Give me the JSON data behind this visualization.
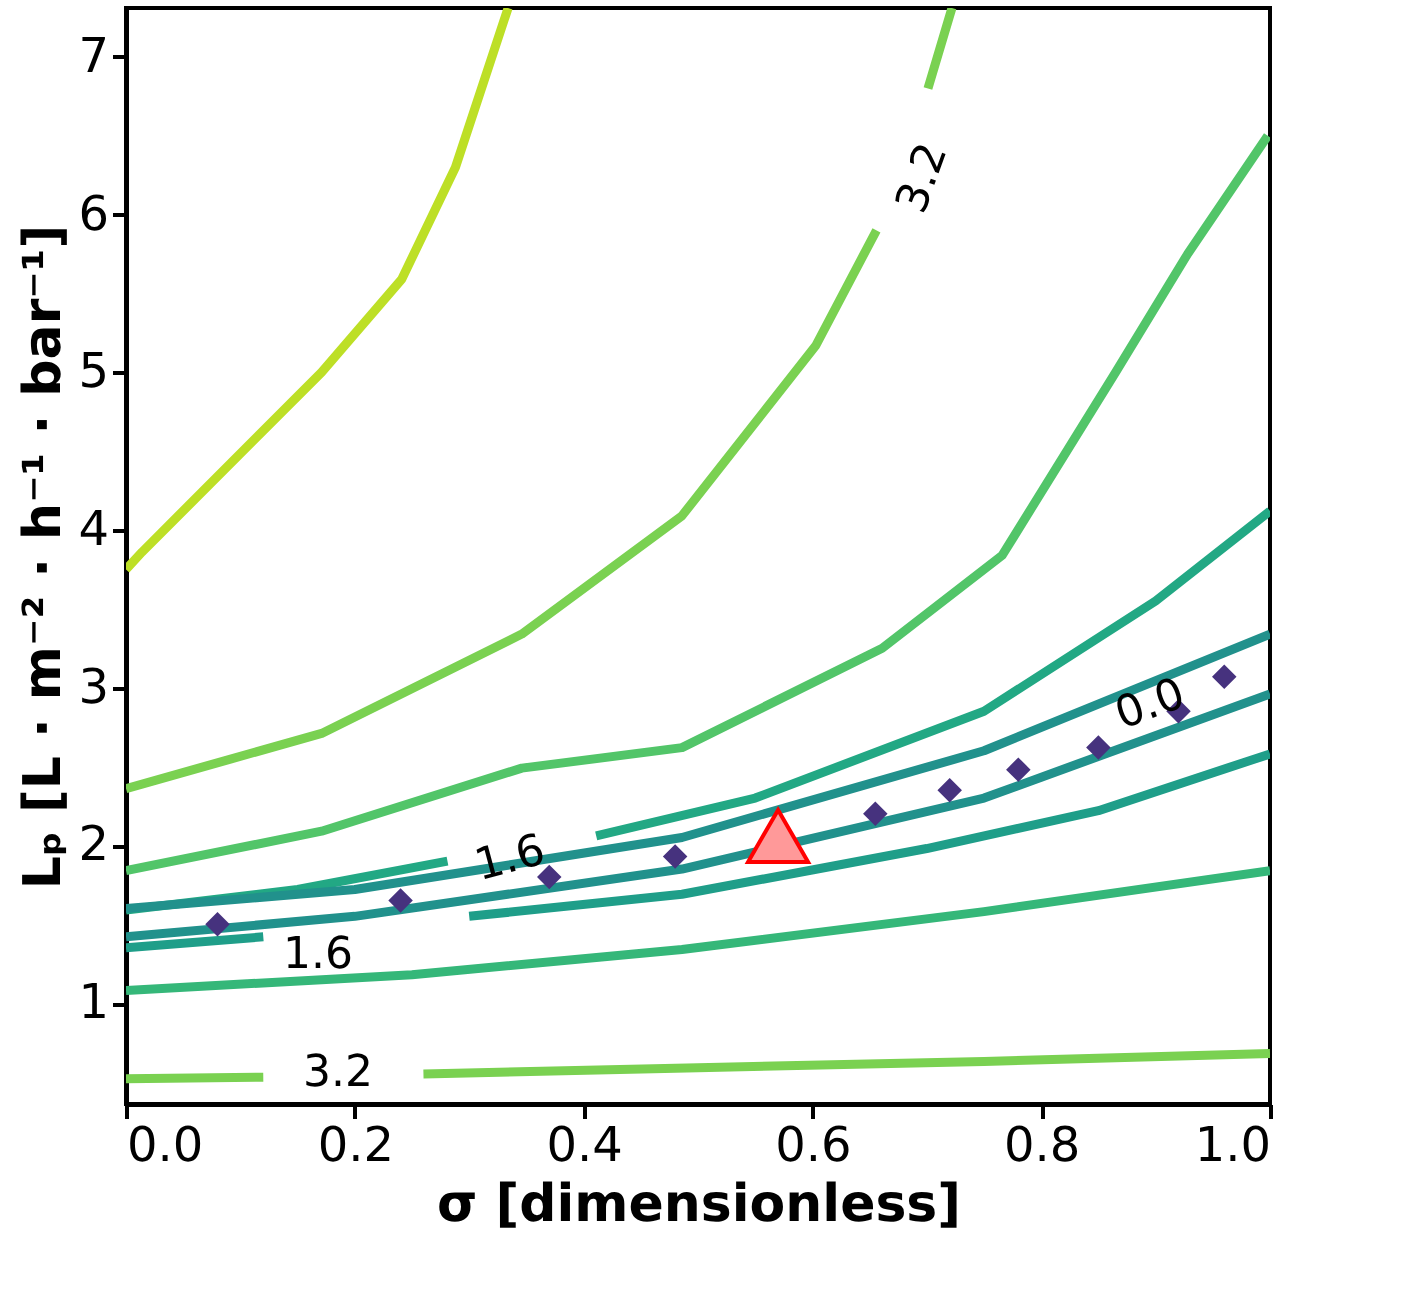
{
  "chart_data": {
    "type": "line",
    "xlabel": "σ [dimensionless]",
    "ylabel": "Lₚ [L · m⁻² · h⁻¹ · bar⁻¹]",
    "xlim": [
      0,
      1
    ],
    "ylim": [
      0.36,
      7.31
    ],
    "xticks": [
      {
        "value": 0,
        "label": "0.0"
      },
      0.2,
      0.4,
      0.6,
      0.8,
      {
        "value": 1,
        "label": "1.0"
      }
    ],
    "yticks": [
      1,
      2,
      3,
      4,
      5,
      6,
      7
    ],
    "grid": false,
    "line_style": "solid",
    "marker": "none",
    "series": [
      {
        "color": "#bddf26",
        "x": [
          0,
          0.014,
          0.171,
          0.241,
          0.288,
          0.334
        ],
        "values": [
          3.75,
          3.86,
          5.0,
          5.59,
          6.3,
          7.31
        ]
      },
      {
        "color": "#7ad151",
        "x": [
          0,
          0.171,
          0.346,
          0.486,
          0.603,
          0.656,
          0.68,
          0.701,
          0.722
        ],
        "values": [
          2.36,
          2.71,
          3.34,
          4.09,
          5.17,
          5.9,
          null,
          6.8,
          7.31
        ]
      },
      {
        "color": "#52c569",
        "x": [
          0,
          0.171,
          0.346,
          0.486,
          0.661,
          0.766,
          0.865,
          0.928,
          0.998
        ],
        "values": [
          1.84,
          2.09,
          2.49,
          2.62,
          3.25,
          3.84,
          5.0,
          5.75,
          6.5
        ]
      },
      {
        "color": "#22a884",
        "x": [
          0,
          0.15,
          0.281,
          0.35,
          0.411,
          0.55,
          0.75,
          0.9,
          1.0
        ],
        "values": [
          1.59,
          1.72,
          1.9,
          null,
          2.06,
          2.3,
          2.85,
          3.55,
          4.12
        ]
      },
      {
        "color": "#21918c",
        "x": [
          0,
          0.2,
          0.486,
          0.75,
          1.0
        ],
        "values": [
          1.6,
          1.72,
          2.05,
          2.6,
          3.34
        ]
      },
      {
        "color": "#21918c",
        "x": [
          0,
          0.2,
          0.486,
          0.75,
          1.0
        ],
        "values": [
          1.42,
          1.55,
          1.85,
          2.3,
          2.96
        ]
      },
      {
        "color": "#1f9e89",
        "x": [
          0,
          0.12,
          0.2,
          0.3,
          0.486,
          0.7,
          0.85,
          1.0
        ],
        "values": [
          1.35,
          1.42,
          null,
          1.55,
          1.69,
          1.98,
          2.22,
          2.58
        ]
      },
      {
        "color": "#35b779",
        "x": [
          0,
          0.25,
          0.486,
          0.75,
          1.0
        ],
        "values": [
          1.08,
          1.18,
          1.34,
          1.58,
          1.84
        ]
      },
      {
        "color": "#7ad151",
        "x": [
          0,
          0.12,
          0.2,
          0.26,
          0.5,
          0.75,
          1.0
        ],
        "values": [
          0.52,
          0.53,
          null,
          0.55,
          0.59,
          0.63,
          0.68
        ]
      },
      {
        "type": "scatter",
        "marker": "diamond",
        "color": "#46327e",
        "x": [
          0.08,
          0.24,
          0.37,
          0.48,
          0.655,
          0.72,
          0.78,
          0.85,
          0.92,
          0.96
        ],
        "values": [
          1.5,
          1.65,
          1.8,
          1.93,
          2.2,
          2.35,
          2.48,
          2.62,
          2.85,
          3.07
        ]
      },
      {
        "type": "scatter",
        "marker": "triangle",
        "color": "#ff9999",
        "x": [
          0.57
        ],
        "values": [
          2.06
        ]
      }
    ],
    "annotations": [
      "3.2",
      "1.6",
      "1.6",
      "3.2",
      "0.0"
    ]
  }
}
